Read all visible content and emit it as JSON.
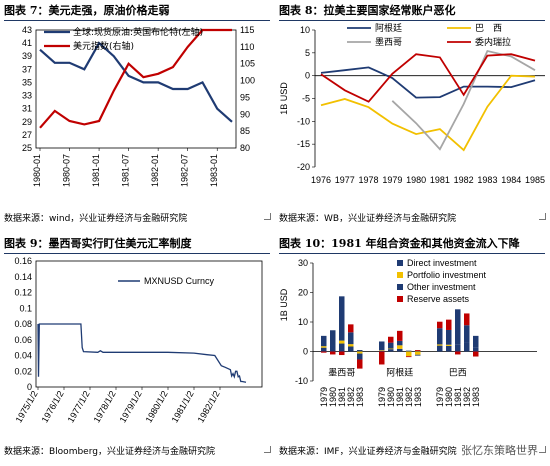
{
  "panels": [
    {
      "title": "图表 7：美元走强，原油价格走弱",
      "source": "数据来源：wind，兴业证券经济与金融研究院"
    },
    {
      "title": "图表 8：拉美主要国家经常账户恶化",
      "source": "数据来源：WB，兴业证券经济与金融研究院"
    },
    {
      "title": "图表 9：墨西哥实行盯住美元汇率制度",
      "source": "数据来源：Bloomberg，兴业证券经济与金融研究院"
    },
    {
      "title": "图表 10：1981 年组合资金和其他资金流入下降",
      "source": "数据来源：IMF，兴业证券经济与金融研究院"
    }
  ],
  "watermark": "张忆东策略世界",
  "chart_data": [
    {
      "type": "line",
      "x": [
        "1980-01",
        "1980-04",
        "1980-07",
        "1980-10",
        "1981-01",
        "1981-04",
        "1981-07",
        "1981-10",
        "1982-01",
        "1982-04",
        "1982-07",
        "1982-10",
        "1983-01",
        "1983-04"
      ],
      "x_ticks": [
        "1980-01",
        "1980-07",
        "1981-01",
        "1981-07",
        "1982-01",
        "1982-07",
        "1983-01"
      ],
      "series": [
        {
          "name": "全球:现货原油:英国布伦特(左轴)",
          "axis": "left",
          "color": "#1f3b73",
          "values": [
            40,
            38,
            38,
            37,
            41,
            39,
            36,
            35,
            35,
            34,
            34,
            35,
            31,
            29
          ]
        },
        {
          "name": "美元指数(右轴)",
          "axis": "right",
          "color": "#c00000",
          "values": [
            86,
            91,
            88,
            87,
            88,
            97,
            105,
            101,
            102,
            104,
            110,
            116,
            117,
            119
          ]
        }
      ],
      "left_ylim": [
        25,
        43
      ],
      "left_ticks": [
        25,
        27,
        29,
        31,
        33,
        35,
        37,
        39,
        41,
        43
      ],
      "right_ylim": [
        80,
        115
      ],
      "right_ticks": [
        80,
        85,
        90,
        95,
        100,
        105,
        110,
        115
      ]
    },
    {
      "type": "line",
      "x": [
        1976,
        1977,
        1978,
        1979,
        1980,
        1981,
        1982,
        1983,
        1984,
        1985
      ],
      "ylabel": "1B USD",
      "ylim": [
        -20,
        10
      ],
      "y_ticks": [
        10,
        5,
        0,
        -5,
        -10,
        -15,
        -20
      ],
      "series": [
        {
          "name": "阿根廷",
          "color": "#1f3b73",
          "values": [
            0.6,
            1.2,
            1.8,
            -0.5,
            -4.8,
            -4.7,
            -2.4,
            -2.4,
            -2.5,
            -1
          ]
        },
        {
          "name": "巴　西",
          "color": "#f2c000",
          "values": [
            -6.5,
            -5.1,
            -6.9,
            -10.5,
            -12.8,
            -11.7,
            -16.3,
            -6.8,
            0,
            -0.2
          ]
        },
        {
          "name": "墨西哥",
          "color": "#a6a6a6",
          "values": [
            null,
            null,
            null,
            -5.5,
            -10.4,
            -16.1,
            -6.2,
            5.4,
            4.2,
            1.2
          ]
        },
        {
          "name": "委内瑞拉",
          "color": "#c00000",
          "values": [
            0.3,
            -3.2,
            -5.7,
            0.4,
            4.7,
            4.0,
            -4.2,
            4.4,
            4.7,
            3.3
          ]
        }
      ]
    },
    {
      "type": "line",
      "series_name": "MXNUSD Curncy",
      "x_ticks": [
        "1975/1/2",
        "1976/1/2",
        "1977/1/2",
        "1978/1/2",
        "1979/1/2",
        "1980/1/2",
        "1981/1/2",
        "1982/1/2"
      ],
      "ylim": [
        0,
        0.16
      ],
      "y_ticks": [
        "0.16",
        "0.14",
        "0.12",
        "0.1",
        "0.08",
        "0.06",
        "0.04",
        "0.02",
        "0"
      ],
      "x_range": [
        1975.0,
        1983.0
      ],
      "points": [
        [
          1975.0,
          0.08
        ],
        [
          1975.02,
          0.013
        ],
        [
          1975.05,
          0.08
        ],
        [
          1975.07,
          0.08
        ],
        [
          1975.1,
          0.08
        ],
        [
          1976.65,
          0.08
        ],
        [
          1976.7,
          0.05
        ],
        [
          1976.75,
          0.045
        ],
        [
          1977.3,
          0.044
        ],
        [
          1977.4,
          0.046
        ],
        [
          1977.5,
          0.044
        ],
        [
          1979.0,
          0.044
        ],
        [
          1980.0,
          0.044
        ],
        [
          1981.0,
          0.043
        ],
        [
          1981.5,
          0.041
        ],
        [
          1981.8,
          0.04
        ],
        [
          1982.05,
          0.027
        ],
        [
          1982.2,
          0.025
        ],
        [
          1982.4,
          0.022
        ],
        [
          1982.45,
          0.014
        ],
        [
          1982.5,
          0.017
        ],
        [
          1982.55,
          0.013
        ],
        [
          1982.6,
          0.02
        ],
        [
          1982.65,
          0.02
        ],
        [
          1982.7,
          0.013
        ],
        [
          1982.75,
          0.014
        ],
        [
          1982.8,
          0.007
        ],
        [
          1982.85,
          0.007
        ],
        [
          1983.0,
          0.006
        ]
      ]
    },
    {
      "type": "bar",
      "stacked": true,
      "ylabel": "1B USD",
      "ylim": [
        -10,
        30
      ],
      "y_ticks": [
        30,
        20,
        10,
        0,
        -10
      ],
      "groups": [
        {
          "name": "墨西哥",
          "years": [
            "1979",
            "1980",
            "1981",
            "1982",
            "1983"
          ]
        },
        {
          "name": "阿根廷",
          "years": [
            "1979",
            "1980",
            "1981",
            "1982",
            "1983"
          ]
        },
        {
          "name": "巴西",
          "years": [
            "1979",
            "1980",
            "1981",
            "1982",
            "1983"
          ]
        }
      ],
      "series": [
        {
          "name": "Direct investment",
          "color": "#1f3b73",
          "values": [
            [
              1.3,
              2.2,
              2.7,
              1.7,
              0.5
            ],
            [
              0.2,
              0.8,
              0.9,
              0.3,
              0.2
            ],
            [
              2.0,
              1.9,
              2.3,
              2.9,
              1.3
            ]
          ]
        },
        {
          "name": "Portfolio investment",
          "color": "#f2c000",
          "values": [
            [
              0.5,
              0.0,
              1.0,
              0.8,
              -0.7
            ],
            [
              0.2,
              0.2,
              1.2,
              -1.6,
              -1.1
            ],
            [
              0.4,
              0.4,
              0.0,
              0.0,
              0.0
            ]
          ]
        },
        {
          "name": "Other investment",
          "color": "#1f3b73",
          "values": [
            [
              3.5,
              5.0,
              15.0,
              4.0,
              -2.0
            ],
            [
              3.0,
              2.0,
              1.5,
              0.0,
              -0.3
            ],
            [
              5.5,
              5.0,
              12.0,
              6.0,
              4.0
            ]
          ]
        },
        {
          "name": "Reserve assets",
          "color": "#c00000",
          "values": [
            [
              -0.4,
              -1.0,
              -1.2,
              2.7,
              -3.1
            ],
            [
              -4.4,
              2.0,
              3.4,
              -0.3,
              0.3
            ],
            [
              2.2,
              3.5,
              -1.0,
              4.0,
              -1.7
            ]
          ]
        }
      ]
    }
  ]
}
